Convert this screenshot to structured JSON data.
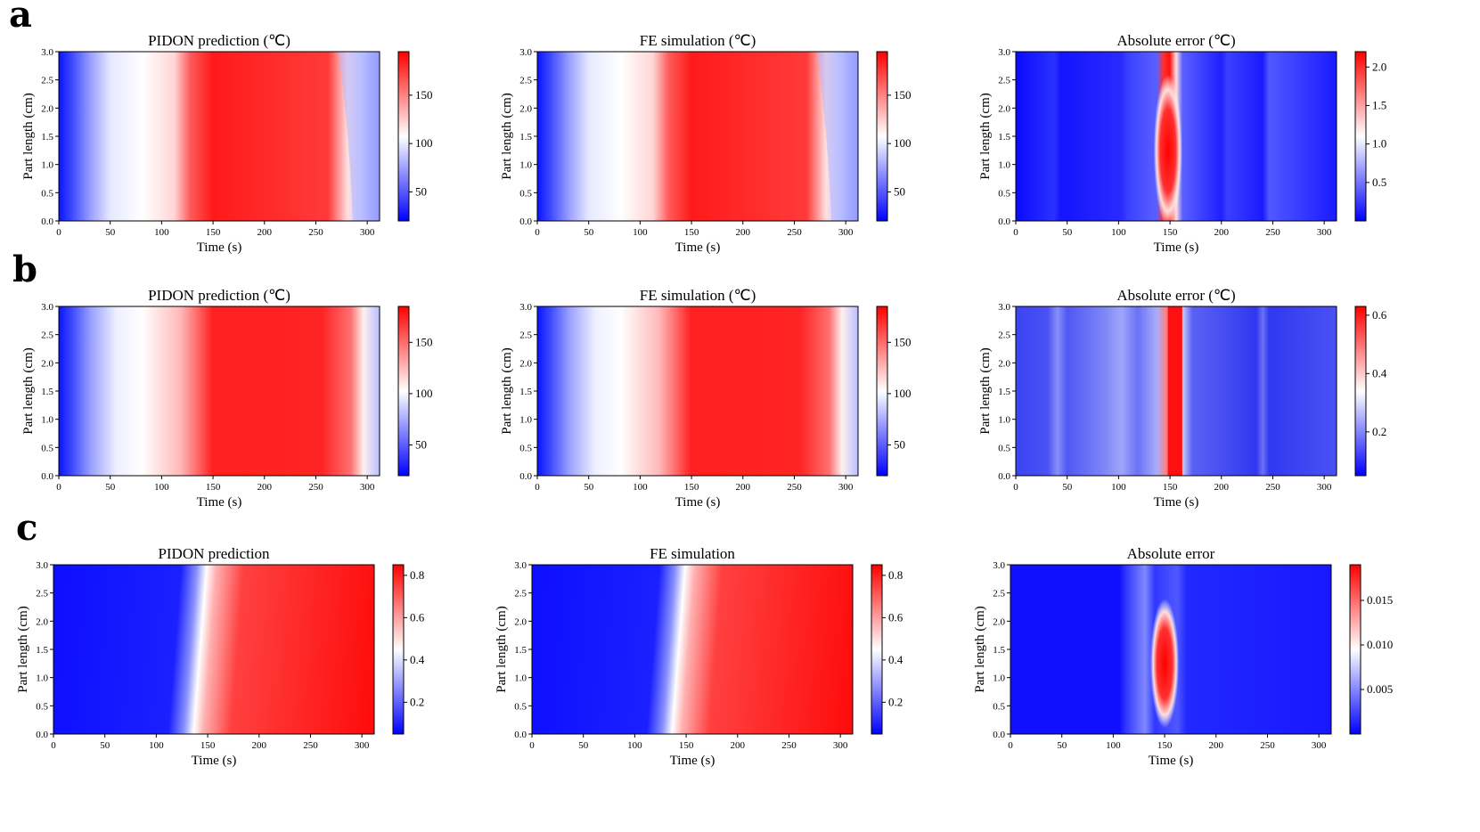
{
  "figure": {
    "rows": [
      {
        "label": "a",
        "panels": [
          {
            "title": "PIDON prediction (℃)",
            "kind": "temp",
            "variant": "a",
            "cbar_ticks": [
              50,
              100,
              150
            ],
            "cbar_range": [
              20,
              195
            ]
          },
          {
            "title": "FE simulation (℃)",
            "kind": "temp",
            "variant": "a",
            "cbar_ticks": [
              50,
              100,
              150
            ],
            "cbar_range": [
              20,
              195
            ]
          },
          {
            "title": "Absolute error (℃)",
            "kind": "err",
            "variant": "a",
            "cbar_ticks": [
              0.5,
              1.0,
              1.5,
              2.0
            ],
            "cbar_tick_labels": [
              "0.5",
              "1.0",
              "1.5",
              "2.0"
            ],
            "cbar_range": [
              0.0,
              2.2
            ]
          }
        ]
      },
      {
        "label": "b",
        "panels": [
          {
            "title": "PIDON prediction (℃)",
            "kind": "temp",
            "variant": "b",
            "cbar_ticks": [
              50,
              100,
              150
            ],
            "cbar_range": [
              20,
              185
            ]
          },
          {
            "title": "FE simulation (℃)",
            "kind": "temp",
            "variant": "b",
            "cbar_ticks": [
              50,
              100,
              150
            ],
            "cbar_range": [
              20,
              185
            ]
          },
          {
            "title": "Absolute error (℃)",
            "kind": "err",
            "variant": "b",
            "cbar_ticks": [
              0.2,
              0.4,
              0.6
            ],
            "cbar_tick_labels": [
              "0.2",
              "0.4",
              "0.6"
            ],
            "cbar_range": [
              0.05,
              0.63
            ]
          }
        ]
      },
      {
        "label": "c",
        "panels": [
          {
            "title": "PIDON prediction",
            "kind": "cure",
            "variant": "c",
            "cbar_ticks": [
              0.2,
              0.4,
              0.6,
              0.8
            ],
            "cbar_tick_labels": [
              "0.2",
              "0.4",
              "0.6",
              "0.8"
            ],
            "cbar_range": [
              0.05,
              0.85
            ]
          },
          {
            "title": "FE simulation",
            "kind": "cure",
            "variant": "c",
            "cbar_ticks": [
              0.2,
              0.4,
              0.6,
              0.8
            ],
            "cbar_tick_labels": [
              "0.2",
              "0.4",
              "0.6",
              "0.8"
            ],
            "cbar_range": [
              0.05,
              0.85
            ]
          },
          {
            "title": "Absolute error",
            "kind": "err",
            "variant": "c",
            "cbar_ticks": [
              0.005,
              0.01,
              0.015
            ],
            "cbar_tick_labels": [
              "0.005",
              "0.010",
              "0.015"
            ],
            "cbar_range": [
              0.0,
              0.019
            ]
          }
        ]
      }
    ],
    "xlabel": "Time (s)",
    "ylabel": "Part length (cm)",
    "xticks": [
      0,
      50,
      100,
      150,
      200,
      250,
      300
    ],
    "yticks": [
      "0.0",
      "0.5",
      "1.0",
      "1.5",
      "2.0",
      "2.5",
      "3.0"
    ],
    "colormap": {
      "low": "#0000ff",
      "mid": "#ffffff",
      "high": "#ff0000"
    }
  },
  "chart_data": [
    {
      "type": "heatmap",
      "title": "PIDON prediction (℃)",
      "xlabel": "Time (s)",
      "ylabel": "Part length (cm)",
      "xlim": [
        0,
        312
      ],
      "ylim": [
        0,
        3.0
      ],
      "colorbar_range": [
        20,
        195
      ],
      "colormap": "bwr",
      "profile_along_time": {
        "x": [
          0,
          25,
          50,
          75,
          100,
          125,
          150,
          200,
          250,
          275,
          295,
          312
        ],
        "values": [
          25,
          60,
          95,
          110,
          120,
          160,
          190,
          185,
          180,
          170,
          100,
          40
        ]
      }
    },
    {
      "type": "heatmap",
      "title": "FE simulation (℃)",
      "xlabel": "Time (s)",
      "ylabel": "Part length (cm)",
      "xlim": [
        0,
        312
      ],
      "ylim": [
        0,
        3.0
      ],
      "colorbar_range": [
        20,
        195
      ],
      "colormap": "bwr",
      "profile_along_time": {
        "x": [
          0,
          25,
          50,
          75,
          100,
          125,
          150,
          200,
          250,
          275,
          295,
          312
        ],
        "values": [
          25,
          60,
          95,
          110,
          120,
          160,
          190,
          185,
          180,
          170,
          100,
          40
        ]
      }
    },
    {
      "type": "heatmap",
      "title": "Absolute error (℃)",
      "xlabel": "Time (s)",
      "ylabel": "Part length (cm)",
      "xlim": [
        0,
        312
      ],
      "ylim": [
        0,
        3.0
      ],
      "colorbar_range": [
        0.0,
        2.2
      ],
      "colormap": "bwr",
      "peak": {
        "time": 148,
        "length_range": [
          0.0,
          2.5
        ],
        "value": 2.2
      }
    },
    {
      "type": "heatmap",
      "title": "PIDON prediction (℃)",
      "xlabel": "Time (s)",
      "ylabel": "Part length (cm)",
      "xlim": [
        0,
        312
      ],
      "ylim": [
        0,
        3.0
      ],
      "colorbar_range": [
        20,
        185
      ],
      "colormap": "bwr",
      "profile_along_time": {
        "x": [
          0,
          25,
          50,
          75,
          100,
          125,
          150,
          200,
          250,
          280,
          300,
          312
        ],
        "values": [
          25,
          60,
          95,
          110,
          125,
          150,
          180,
          185,
          180,
          160,
          100,
          80
        ]
      }
    },
    {
      "type": "heatmap",
      "title": "FE simulation (℃)",
      "xlabel": "Time (s)",
      "ylabel": "Part length (cm)",
      "xlim": [
        0,
        312
      ],
      "ylim": [
        0,
        3.0
      ],
      "colorbar_range": [
        20,
        185
      ],
      "colormap": "bwr",
      "profile_along_time": {
        "x": [
          0,
          25,
          50,
          75,
          100,
          125,
          150,
          200,
          250,
          280,
          300,
          312
        ],
        "values": [
          25,
          60,
          95,
          110,
          125,
          150,
          180,
          185,
          180,
          160,
          100,
          80
        ]
      }
    },
    {
      "type": "heatmap",
      "title": "Absolute error (℃)",
      "xlabel": "Time (s)",
      "ylabel": "Part length (cm)",
      "xlim": [
        0,
        312
      ],
      "ylim": [
        0,
        3.0
      ],
      "colorbar_range": [
        0.05,
        0.63
      ],
      "colormap": "bwr",
      "peak": {
        "time": 155,
        "length_range": [
          0.0,
          3.0
        ],
        "value": 0.62
      }
    },
    {
      "type": "heatmap",
      "title": "PIDON prediction",
      "xlabel": "Time (s)",
      "ylabel": "Part length (cm)",
      "xlim": [
        0,
        312
      ],
      "ylim": [
        0,
        3.0
      ],
      "colorbar_range": [
        0.05,
        0.85
      ],
      "colormap": "bwr",
      "front": {
        "time_at_length_0": 152,
        "time_at_length_3": 138,
        "value_before": 0.05,
        "value_after": 0.85
      }
    },
    {
      "type": "heatmap",
      "title": "FE simulation",
      "xlabel": "Time (s)",
      "ylabel": "Part length (cm)",
      "xlim": [
        0,
        312
      ],
      "ylim": [
        0,
        3.0
      ],
      "colorbar_range": [
        0.05,
        0.85
      ],
      "colormap": "bwr",
      "front": {
        "time_at_length_0": 152,
        "time_at_length_3": 138,
        "value_before": 0.05,
        "value_after": 0.85
      }
    },
    {
      "type": "heatmap",
      "title": "Absolute error",
      "xlabel": "Time (s)",
      "ylabel": "Part length (cm)",
      "xlim": [
        0,
        312
      ],
      "ylim": [
        0,
        3.0
      ],
      "colorbar_range": [
        0.0,
        0.019
      ],
      "colormap": "bwr",
      "peak": {
        "time": 150,
        "length_range": [
          0.2,
          2.3
        ],
        "value": 0.019
      }
    }
  ]
}
